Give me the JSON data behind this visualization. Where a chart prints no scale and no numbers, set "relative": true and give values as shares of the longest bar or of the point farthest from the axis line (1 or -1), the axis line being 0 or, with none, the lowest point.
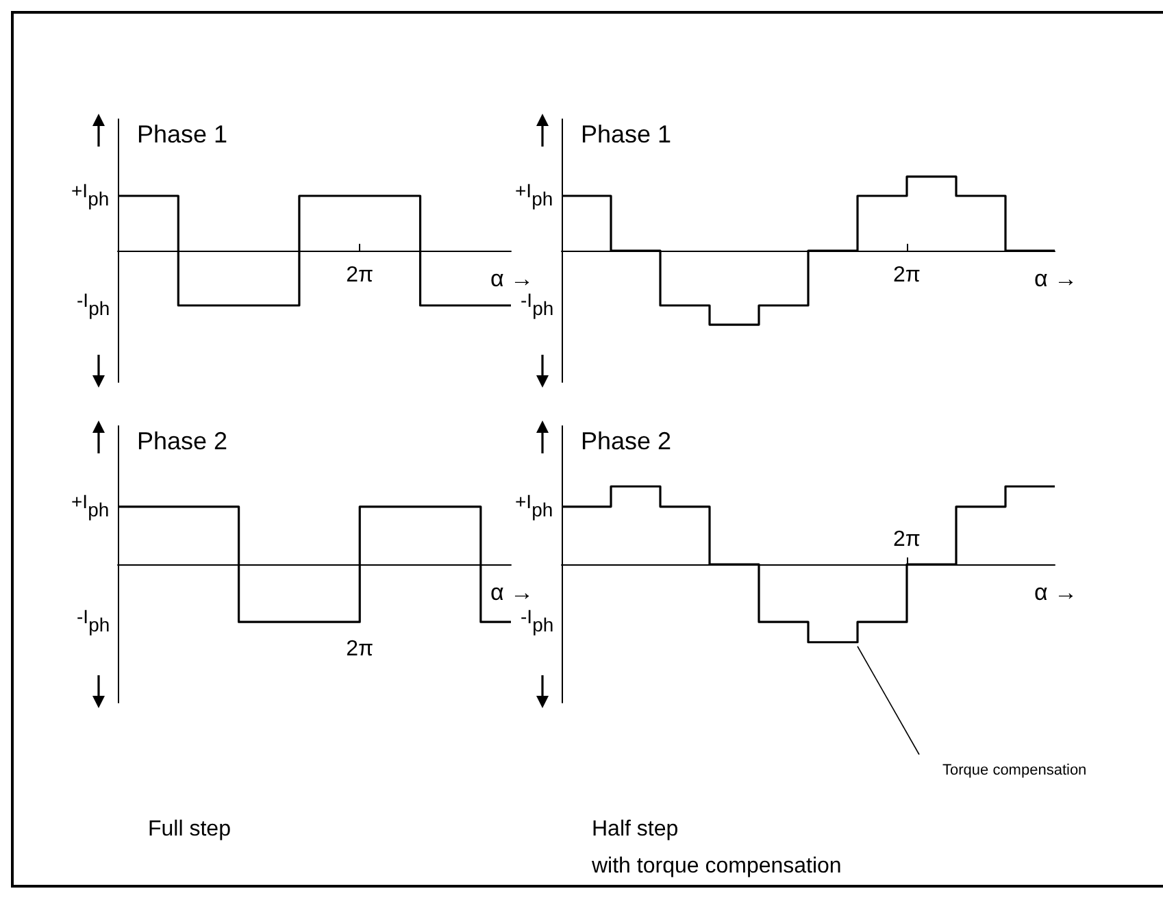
{
  "chart_data": [
    {
      "type": "step",
      "relative": true,
      "title": "Phase 1",
      "xlabel": "α →",
      "categories": [
        null,
        null,
        null,
        null,
        null,
        null,
        null,
        null,
        null,
        null,
        null,
        null,
        null,
        null
      ],
      "values": [
        1,
        1,
        -1,
        -1,
        -1,
        -1,
        1,
        1,
        1,
        1,
        -1,
        -1,
        -1,
        -1
      ],
      "color": "#000000",
      "annotations": [
        "+I$_{ph}$",
        "-I$_{ph}$",
        "2π"
      ]
    },
    {
      "type": "step",
      "relative": true,
      "title": "Phase 1",
      "xlabel": "α →",
      "categories": [
        null,
        null,
        null,
        null,
        null,
        null,
        null,
        null,
        null,
        null,
        null
      ],
      "values": [
        0.74,
        0,
        -0.74,
        -1,
        -0.74,
        0,
        0.74,
        1,
        0.74,
        0,
        0
      ],
      "color": "#000000",
      "annotations": [
        "+I$_{ph}$",
        "-I$_{ph}$",
        "2π"
      ]
    },
    {
      "type": "step",
      "relative": true,
      "title": "Phase 2",
      "xlabel": "α →",
      "categories": [
        null,
        null,
        null,
        null,
        null,
        null,
        null,
        null,
        null,
        null,
        null,
        null,
        null,
        null
      ],
      "values": [
        1,
        1,
        1,
        1,
        -1,
        -1,
        -1,
        -1,
        1,
        1,
        1,
        1,
        -1,
        -1
      ],
      "color": "#000000",
      "annotations": [
        "+I$_{ph}$",
        "-I$_{ph}$",
        "2π",
        "Full step"
      ]
    },
    {
      "type": "step",
      "relative": true,
      "title": "Phase 2",
      "xlabel": "α →",
      "categories": [
        null,
        null,
        null,
        null,
        null,
        null,
        null,
        null,
        null,
        null,
        null
      ],
      "values": [
        0.74,
        1,
        0.74,
        0,
        -0.74,
        -1,
        -0.74,
        0,
        0.74,
        1,
        1
      ],
      "color": "#000000",
      "annotations": [
        "+I$_{ph}$",
        "-I$_{ph}$",
        "2π",
        "Torque compensation",
        "Half step\nwith torque compensation"
      ]
    }
  ]
}
